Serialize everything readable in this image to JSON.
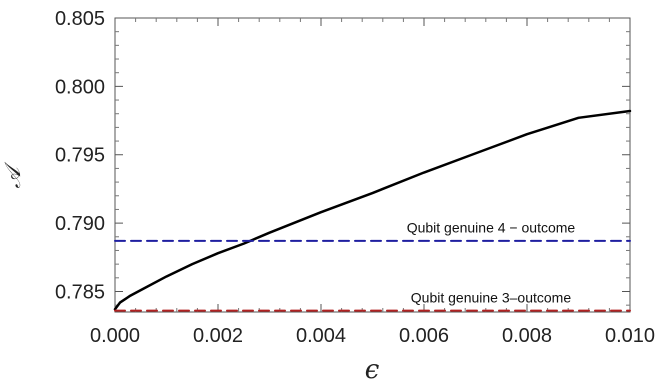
{
  "chart_data": {
    "type": "line",
    "title": "",
    "xlabel": "ϵ",
    "ylabel": "𝒜",
    "xlim": [
      0.0,
      0.01
    ],
    "ylim": [
      0.7835,
      0.805
    ],
    "x_ticks": [
      "0.000",
      "0.002",
      "0.004",
      "0.006",
      "0.008",
      "0.010"
    ],
    "y_ticks": [
      "0.785",
      "0.790",
      "0.795",
      "0.800",
      "0.805"
    ],
    "grid": false,
    "series": [
      {
        "color": "#000000",
        "style": "solid",
        "x": [
          0.0,
          0.0001,
          0.0003,
          0.0005,
          0.001,
          0.0015,
          0.002,
          0.0025,
          0.003,
          0.004,
          0.005,
          0.006,
          0.007,
          0.008,
          0.009,
          0.01
        ],
        "y": [
          0.7837,
          0.7842,
          0.7847,
          0.7851,
          0.7861,
          0.787,
          0.7878,
          0.7885,
          0.7893,
          0.7908,
          0.7922,
          0.7937,
          0.7951,
          0.7965,
          0.7977,
          0.7982
        ]
      },
      {
        "name": "Qubit genuine 4 − outcome",
        "color": "#1f1fa0",
        "style": "dashed",
        "x": [
          0.0,
          0.01
        ],
        "y": [
          0.7887,
          0.7887
        ]
      },
      {
        "name": "Qubit genuine 3‒outcome",
        "color": "#b22222",
        "style": "dashed",
        "x": [
          0.0,
          0.01
        ],
        "y": [
          0.7836,
          0.7836
        ]
      }
    ],
    "annotations": [
      {
        "text": "Qubit genuine 4 − outcome",
        "x": 0.0073,
        "y": 0.7893
      },
      {
        "text": "Qubit genuine 3‒outcome",
        "x": 0.0073,
        "y": 0.7842
      }
    ]
  }
}
